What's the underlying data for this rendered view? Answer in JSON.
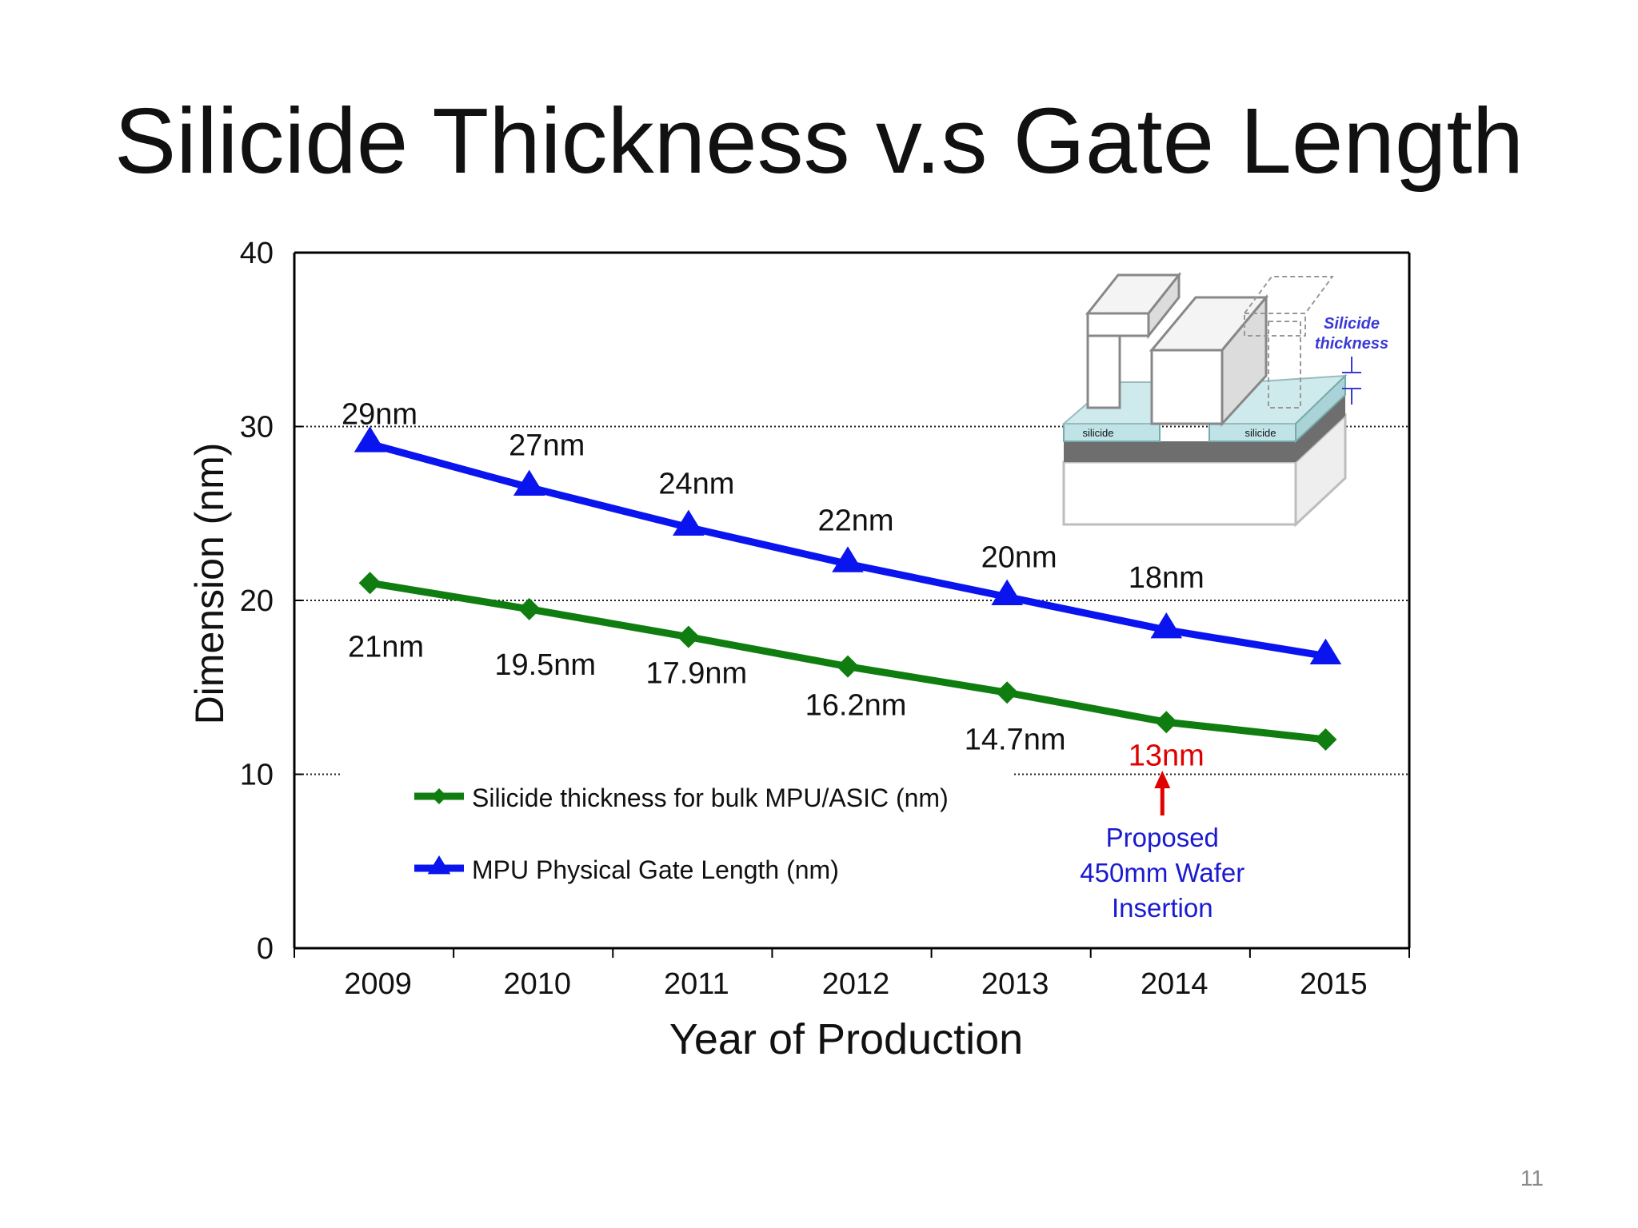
{
  "slide": {
    "title": "Silicide Thickness v.s Gate Length",
    "page_number": "11"
  },
  "chart_data": {
    "type": "line",
    "xlabel": "Year of Production",
    "ylabel": "Dimension (nm)",
    "categories": [
      "2009",
      "2010",
      "2011",
      "2012",
      "2013",
      "2014",
      "2015"
    ],
    "ylim": [
      0,
      40
    ],
    "yticks": [
      "0",
      "10",
      "20",
      "30",
      "40"
    ],
    "grid_dotted_at": [
      10,
      20,
      30
    ],
    "legend_position": "lower-left",
    "series": [
      {
        "name": "Silicide thickness for bulk MPU/ASIC (nm)",
        "marker": "diamond",
        "color": "#0f7d0f",
        "values": [
          21,
          19.5,
          17.9,
          16.2,
          14.7,
          13,
          12
        ],
        "data_labels": [
          "21nm",
          "19.5nm",
          "17.9nm",
          "16.2nm",
          "14.7nm",
          "13nm",
          ""
        ]
      },
      {
        "name": "MPU Physical Gate Length (nm)",
        "marker": "triangle",
        "color": "#0a14ee",
        "values": [
          29,
          26.5,
          24.2,
          22.1,
          20.2,
          18.3,
          16.8
        ],
        "data_labels": [
          "29nm",
          "27nm",
          "24nm",
          "22nm",
          "20nm",
          "18nm",
          ""
        ]
      }
    ],
    "highlight": {
      "label": "13nm",
      "color": "#e00000"
    },
    "annotation": {
      "lines": [
        "Proposed",
        "450mm Wafer",
        "Insertion"
      ],
      "color": "#1a1ad0",
      "arrow_color": "#e00000"
    },
    "inset": {
      "silicide_labels": [
        "silicide",
        "silicide"
      ],
      "thickness_label_lines": [
        "Silicide",
        "thickness"
      ]
    }
  }
}
